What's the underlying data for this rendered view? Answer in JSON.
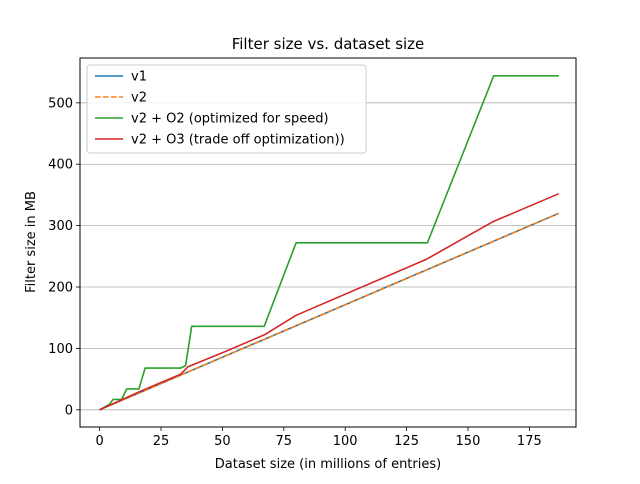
{
  "chart_data": {
    "type": "line",
    "title": "Filter size vs. dataset size",
    "xlabel": "Dataset size (in millions of entries)",
    "ylabel": "Filter size in MB",
    "xlim": [
      -8,
      194
    ],
    "ylim": [
      -28,
      573
    ],
    "xticks": [
      0,
      25,
      50,
      75,
      100,
      125,
      150,
      175
    ],
    "yticks": [
      0,
      100,
      200,
      300,
      400,
      500
    ],
    "grid": "y-major",
    "legend_position": "top-left",
    "series": [
      {
        "name": "v1",
        "color": "#1f77b4",
        "style": "solid",
        "points": [
          [
            0,
            0
          ],
          [
            187,
            320
          ]
        ]
      },
      {
        "name": "v2",
        "color": "#ff7f0e",
        "style": "dashed",
        "points": [
          [
            0,
            0
          ],
          [
            187,
            320
          ]
        ]
      },
      {
        "name": "v2 + O2 (optimized for speed)",
        "color": "#2ca02c",
        "style": "solid",
        "points": [
          [
            0,
            0
          ],
          [
            4,
            9
          ],
          [
            5.5,
            17
          ],
          [
            9,
            17
          ],
          [
            11,
            34
          ],
          [
            16,
            34
          ],
          [
            18.5,
            68
          ],
          [
            33,
            68
          ],
          [
            35,
            72
          ],
          [
            37.5,
            136
          ],
          [
            67,
            136
          ],
          [
            80,
            272
          ],
          [
            133.5,
            272
          ],
          [
            160.5,
            544
          ],
          [
            187,
            544
          ]
        ]
      },
      {
        "name": "v2 + O3 (trade off optimization))",
        "color": "#d62728",
        "style": "solid",
        "points": [
          [
            0,
            0
          ],
          [
            17,
            31
          ],
          [
            33,
            58
          ],
          [
            36,
            70
          ],
          [
            50,
            93
          ],
          [
            67,
            122
          ],
          [
            80,
            154
          ],
          [
            133,
            245
          ],
          [
            160,
            306
          ],
          [
            187,
            352
          ]
        ]
      }
    ]
  }
}
